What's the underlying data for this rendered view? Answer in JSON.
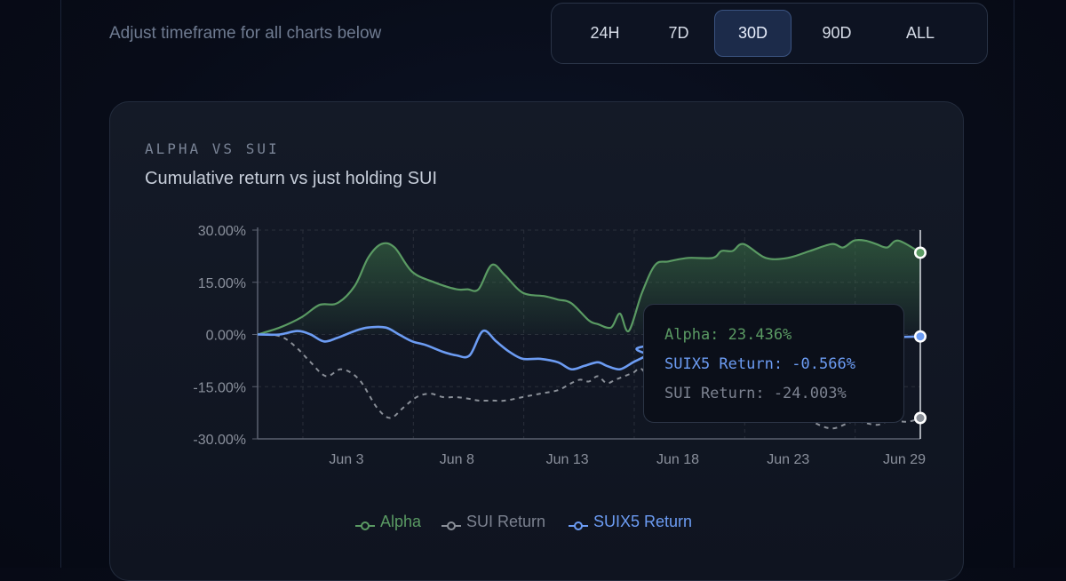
{
  "timeframe": {
    "label": "Adjust timeframe for all charts below",
    "options": [
      "24H",
      "7D",
      "30D",
      "90D",
      "ALL"
    ],
    "selected": "30D"
  },
  "card": {
    "eyebrow": "ALPHA VS SUI",
    "subtitle": "Cumulative return vs just holding SUI"
  },
  "tooltip": {
    "alpha": "Alpha: 23.436%",
    "suix5": "SUIX5 Return: -0.566%",
    "sui": "SUI Return: -24.003%"
  },
  "colors": {
    "alpha": "#5a9a63",
    "sui": "#8a8f98",
    "suix5": "#6c9cf3",
    "grid": "#2a2f3b"
  },
  "chart_data": {
    "type": "line",
    "title": "",
    "xlabel": "",
    "ylabel": "",
    "ylim": [
      -30,
      30
    ],
    "yticks": [
      30,
      15,
      0,
      -15,
      -30
    ],
    "ytick_labels": [
      "30.00%",
      "15.00%",
      "0.00%",
      "-15.00%",
      "-30.00%"
    ],
    "xticks": [
      "Jun 3",
      "Jun 8",
      "Jun 13",
      "Jun 18",
      "Jun 23",
      "Jun 29"
    ],
    "xtick_positions": [
      4,
      9,
      14,
      19,
      24,
      29
    ],
    "xlim": [
      0,
      30
    ],
    "legend_position": "bottom",
    "hover_day": 30,
    "series": [
      {
        "name": "Alpha",
        "x": [
          0,
          1,
          2,
          2.8,
          3.6,
          4.4,
          5,
          5.6,
          6.2,
          7,
          8,
          9,
          9.5,
          10,
          10.6,
          11.2,
          12,
          13,
          13.6,
          14.2,
          15,
          15.4,
          16,
          16.4,
          16.8,
          17.4,
          18,
          18.6,
          19.5,
          20.6,
          21,
          21.5,
          22,
          23,
          24,
          25,
          26,
          26.5,
          27,
          27.5,
          28,
          28.5,
          29,
          30
        ],
        "y": [
          0,
          2,
          5,
          8.5,
          9,
          14,
          22,
          26,
          25,
          18,
          15,
          13,
          13,
          13,
          20,
          17,
          12,
          11,
          10,
          9,
          4,
          3,
          2,
          6,
          1,
          12,
          20,
          21,
          22,
          22,
          24,
          24,
          26,
          22,
          22,
          24,
          26,
          25,
          27,
          27,
          26,
          25,
          27,
          23.5
        ]
      },
      {
        "name": "SUI Return",
        "x": [
          0,
          0.6,
          1.2,
          1.8,
          2.4,
          3.1,
          3.8,
          4.6,
          5.4,
          6.0,
          6.6,
          7.2,
          7.8,
          8.4,
          9,
          9.6,
          10,
          10.6,
          11.2,
          12,
          12.8,
          13.6,
          14.2,
          14.6,
          15,
          15.4,
          15.8,
          16.2,
          16.6,
          17.0,
          17.4,
          18,
          19,
          20,
          21,
          22,
          23,
          24,
          25,
          26,
          27,
          28,
          28.5,
          29,
          29.5,
          30
        ],
        "y": [
          0,
          0,
          -1,
          -4,
          -8,
          -12,
          -10,
          -13,
          -21,
          -24,
          -21,
          -18,
          -17,
          -18,
          -18,
          -18.5,
          -19,
          -19,
          -19,
          -18,
          -17,
          -16,
          -14,
          -13,
          -13.5,
          -12,
          -14,
          -13,
          -12,
          -11,
          -10,
          -16,
          -20,
          -22,
          -21,
          -20,
          -22,
          -24,
          -25,
          -27,
          -25,
          -26,
          -25,
          -25,
          -25,
          -24
        ]
      },
      {
        "name": "SUIX5 Return",
        "x": [
          0,
          1,
          1.8,
          2.4,
          3,
          3.6,
          4.4,
          5,
          5.8,
          6.4,
          7,
          7.6,
          8.4,
          9,
          9.6,
          10.2,
          10.8,
          11.4,
          12,
          12.8,
          13.6,
          14.2,
          14.8,
          15.4,
          15.8,
          16.4,
          17,
          17.6,
          18.2,
          30
        ],
        "y": [
          0,
          0,
          1,
          0,
          -2,
          -1,
          1,
          2,
          2,
          0,
          -2,
          -3,
          -5,
          -6,
          -6,
          1,
          -2,
          -5,
          -7,
          -7,
          -8,
          -10,
          -9,
          -8,
          -9,
          -10,
          -8,
          -6,
          -3,
          -0.566
        ]
      }
    ]
  }
}
